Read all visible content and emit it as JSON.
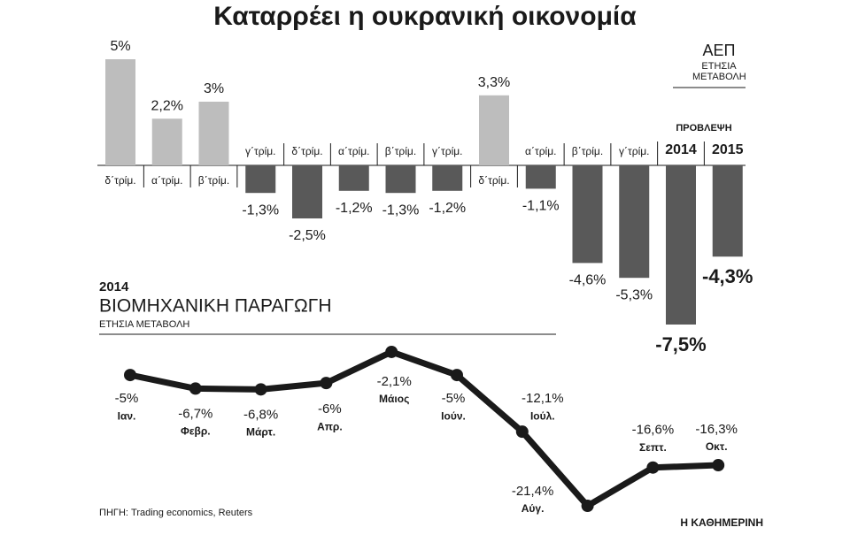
{
  "title": "Καταρρέει η ουκρανική οικονομία",
  "source": "ΠΗΓΗ: Trading economics, Reuters",
  "brand": "Η ΚΑΘΗΜΕΡΙΝΗ",
  "chart_data": [
    {
      "type": "bar",
      "title": "ΑΕΠ",
      "subtitle": "ΕΤΗΣΙΑ ΜΕΤΑΒΟΛΗ",
      "annotation": "ΠΡΟΒΛΕΨΗ",
      "categories": [
        "δ΄τρίμ.",
        "α΄τρίμ.",
        "β΄τρίμ.",
        "γ΄τρίμ.",
        "δ΄τρίμ.",
        "α΄τρίμ.",
        "β΄τρίμ.",
        "γ΄τρίμ.",
        "δ΄τρίμ.",
        "α΄τρίμ.",
        "β΄τρίμ.",
        "γ΄τρίμ.",
        "2014",
        "2015"
      ],
      "values": [
        5,
        2.2,
        3,
        -1.3,
        -2.5,
        -1.2,
        -1.3,
        -1.2,
        3.3,
        -1.1,
        -4.6,
        -5.3,
        -7.5,
        -4.3
      ],
      "value_labels": [
        "5%",
        "2,2%",
        "3%",
        "-1,3%",
        "-2,5%",
        "-1,2%",
        "-1,3%",
        "-1,2%",
        "3,3%",
        "-1,1%",
        "-4,6%",
        "-5,3%",
        "-7,5%",
        "-4,3%"
      ],
      "positive_color": "#bdbdbd",
      "negative_color": "#595959"
    },
    {
      "type": "line",
      "title": "2014",
      "subtitle": "ΒΙΟΜΗΧΑΝΙΚΗ ΠΑΡΑΓΩΓΗ",
      "note": "ΕΤΗΣΙΑ ΜΕΤΑΒΟΛΗ",
      "categories": [
        "Ιαν.",
        "Φεβρ.",
        "Μάρτ.",
        "Απρ.",
        "Μάιος",
        "Ιούν.",
        "Ιούλ.",
        "Αύγ.",
        "Σεπτ.",
        "Οκτ."
      ],
      "values": [
        -5,
        -6.7,
        -6.8,
        -6,
        -2.1,
        -5,
        -12.1,
        -21.4,
        -16.6,
        -16.3
      ],
      "value_labels": [
        "-5%",
        "-6,7%",
        "-6,8%",
        "-6%",
        "-2,1%",
        "-5%",
        "-12,1%",
        "-21,4%",
        "-16,6%",
        "-16,3%"
      ],
      "color": "#1a1a1a"
    }
  ]
}
